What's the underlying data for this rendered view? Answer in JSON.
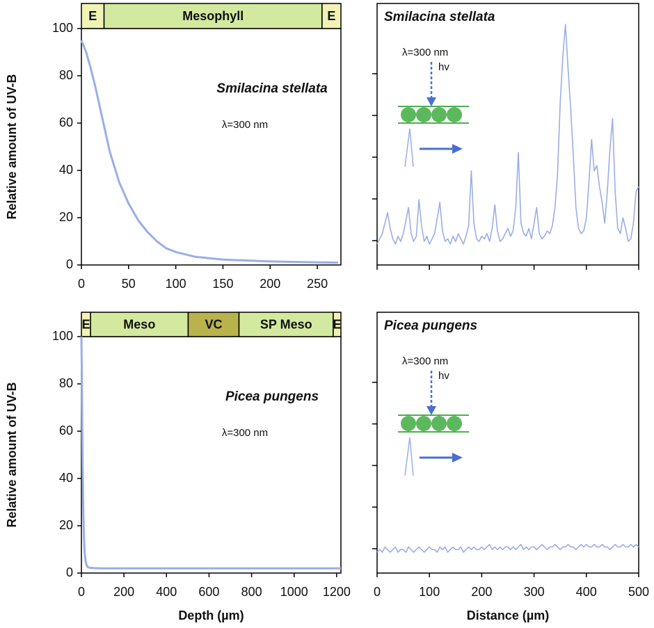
{
  "chart_data": [
    {
      "type": "line",
      "ylabel": "Relative amount of UV-B",
      "annotations": [
        "Smilacina stellata",
        "λ=300 nm"
      ],
      "tissues": [
        {
          "label": "E",
          "start": 0,
          "end": 24,
          "color": "#f1f3b4"
        },
        {
          "label": "Mesophyll",
          "start": 24,
          "end": 255,
          "color": "#d3e99f"
        },
        {
          "label": "E",
          "start": 255,
          "end": 275,
          "color": "#f1f3b4"
        }
      ],
      "x": [
        0,
        5,
        10,
        15,
        20,
        25,
        30,
        40,
        50,
        60,
        70,
        80,
        90,
        100,
        120,
        150,
        200,
        250,
        272
      ],
      "values": [
        95,
        90,
        83,
        75,
        66,
        57,
        48,
        35,
        26,
        19,
        14,
        10,
        7,
        5.5,
        3.5,
        2.3,
        1.5,
        1.1,
        1
      ],
      "color": "#9aaee6",
      "xlim": [
        0,
        275
      ],
      "xticks": [
        0,
        50,
        100,
        150,
        200,
        250
      ],
      "ylim": [
        0,
        100
      ],
      "yticks": [
        0,
        20,
        40,
        60,
        80,
        100
      ]
    },
    {
      "type": "line",
      "annotations": [
        "Smilacina stellata",
        "λ=300 nm",
        "hv"
      ],
      "x": [
        0,
        5,
        10,
        15,
        20,
        25,
        30,
        35,
        40,
        45,
        50,
        55,
        60,
        65,
        70,
        75,
        80,
        85,
        90,
        95,
        100,
        105,
        110,
        115,
        120,
        125,
        130,
        135,
        140,
        145,
        150,
        155,
        160,
        165,
        170,
        175,
        180,
        185,
        190,
        195,
        200,
        205,
        210,
        215,
        220,
        225,
        230,
        235,
        240,
        245,
        250,
        255,
        260,
        265,
        270,
        275,
        280,
        285,
        290,
        295,
        300,
        305,
        310,
        315,
        320,
        325,
        330,
        335,
        340,
        345,
        350,
        355,
        360,
        365,
        370,
        375,
        380,
        385,
        390,
        395,
        400,
        405,
        410,
        415,
        420,
        425,
        430,
        435,
        440,
        445,
        450,
        455,
        460,
        465,
        470,
        475,
        480,
        485,
        490,
        495,
        500
      ],
      "values": [
        8,
        10,
        12,
        16,
        20,
        14,
        10,
        8,
        11,
        9,
        12,
        17,
        22,
        12,
        9,
        11,
        25,
        15,
        9,
        11,
        8,
        10,
        12,
        18,
        24,
        13,
        9,
        10,
        8,
        11,
        9,
        12,
        10,
        8,
        11,
        15,
        36,
        16,
        10,
        9,
        11,
        10,
        12,
        9,
        14,
        23,
        13,
        9,
        10,
        12,
        14,
        11,
        13,
        22,
        43,
        16,
        12,
        11,
        14,
        10,
        16,
        22,
        12,
        10,
        11,
        13,
        12,
        15,
        22,
        35,
        62,
        80,
        92,
        75,
        60,
        42,
        22,
        14,
        12,
        13,
        18,
        32,
        48,
        36,
        38,
        30,
        24,
        16,
        28,
        44,
        56,
        28,
        14,
        12,
        18,
        14,
        9,
        10,
        16,
        28,
        30
      ],
      "color": "#9aaee6",
      "xlim": [
        0,
        500
      ],
      "ylim": [
        0,
        100
      ]
    },
    {
      "type": "line",
      "ylabel": "Relative amount of UV-B",
      "xlabel": "Depth (µm)",
      "annotations": [
        "Picea pungens",
        "λ=300 nm"
      ],
      "tissues": [
        {
          "label": "E",
          "start": 0,
          "end": 43,
          "color": "#f1f3b4"
        },
        {
          "label": "Meso",
          "start": 43,
          "end": 502,
          "color": "#d3e99f"
        },
        {
          "label": "VC",
          "start": 502,
          "end": 741,
          "color": "#b8b34c"
        },
        {
          "label": "SP Meso",
          "start": 741,
          "end": 1184,
          "color": "#d3e99f"
        },
        {
          "label": "E",
          "start": 1184,
          "end": 1220,
          "color": "#f1f3b4"
        }
      ],
      "x": [
        0,
        2,
        4,
        6,
        8,
        10,
        12,
        15,
        20,
        25,
        30,
        40,
        60,
        100,
        1220
      ],
      "values": [
        100,
        85,
        65,
        45,
        32,
        22,
        15,
        9,
        5,
        3.2,
        2.5,
        2.2,
        2.1,
        2,
        2
      ],
      "color": "#9aaee6",
      "xlim": [
        0,
        1220
      ],
      "xticks": [
        0,
        200,
        400,
        600,
        800,
        1000,
        1200
      ],
      "ylim": [
        0,
        100
      ],
      "yticks": [
        0,
        20,
        40,
        60,
        80,
        100
      ]
    },
    {
      "type": "line",
      "xlabel": "Distance (µm)",
      "annotations": [
        "Picea pungens",
        "λ=300 nm",
        "hv"
      ],
      "x": [
        0,
        5,
        10,
        15,
        20,
        25,
        30,
        35,
        40,
        45,
        50,
        55,
        60,
        65,
        70,
        75,
        80,
        85,
        90,
        95,
        100,
        105,
        110,
        115,
        120,
        125,
        130,
        135,
        140,
        145,
        150,
        155,
        160,
        165,
        170,
        175,
        180,
        185,
        190,
        195,
        200,
        205,
        210,
        215,
        220,
        225,
        230,
        235,
        240,
        245,
        250,
        255,
        260,
        265,
        270,
        275,
        280,
        285,
        290,
        295,
        300,
        305,
        310,
        315,
        320,
        325,
        330,
        335,
        340,
        345,
        350,
        355,
        360,
        365,
        370,
        375,
        380,
        385,
        390,
        395,
        400,
        405,
        410,
        415,
        420,
        425,
        430,
        435,
        440,
        445,
        450,
        455,
        460,
        465,
        470,
        475,
        480,
        485,
        490,
        495,
        500
      ],
      "values": [
        8,
        9,
        8,
        10,
        9,
        8,
        9,
        10,
        8,
        9,
        9,
        8,
        10,
        9,
        8,
        9,
        10,
        9,
        8,
        9,
        10,
        9,
        9,
        8,
        10,
        9,
        10,
        8,
        9,
        10,
        9,
        9,
        10,
        8,
        9,
        10,
        9,
        10,
        9,
        9,
        10,
        9,
        10,
        11,
        9,
        10,
        9,
        10,
        9,
        10,
        10,
        9,
        10,
        9,
        10,
        11,
        9,
        10,
        9,
        10,
        10,
        9,
        10,
        11,
        10,
        9,
        10,
        10,
        11,
        10,
        9,
        10,
        10,
        11,
        10,
        10,
        9,
        10,
        11,
        10,
        11,
        10,
        10,
        11,
        10,
        10,
        11,
        10,
        10,
        9,
        10,
        11,
        10,
        10,
        11,
        10,
        10,
        11,
        10,
        11,
        10
      ],
      "color": "#9aaee6",
      "xlim": [
        0,
        500
      ],
      "xticks": [
        0,
        100,
        200,
        300,
        400,
        500
      ],
      "ylim": [
        0,
        100
      ]
    }
  ]
}
